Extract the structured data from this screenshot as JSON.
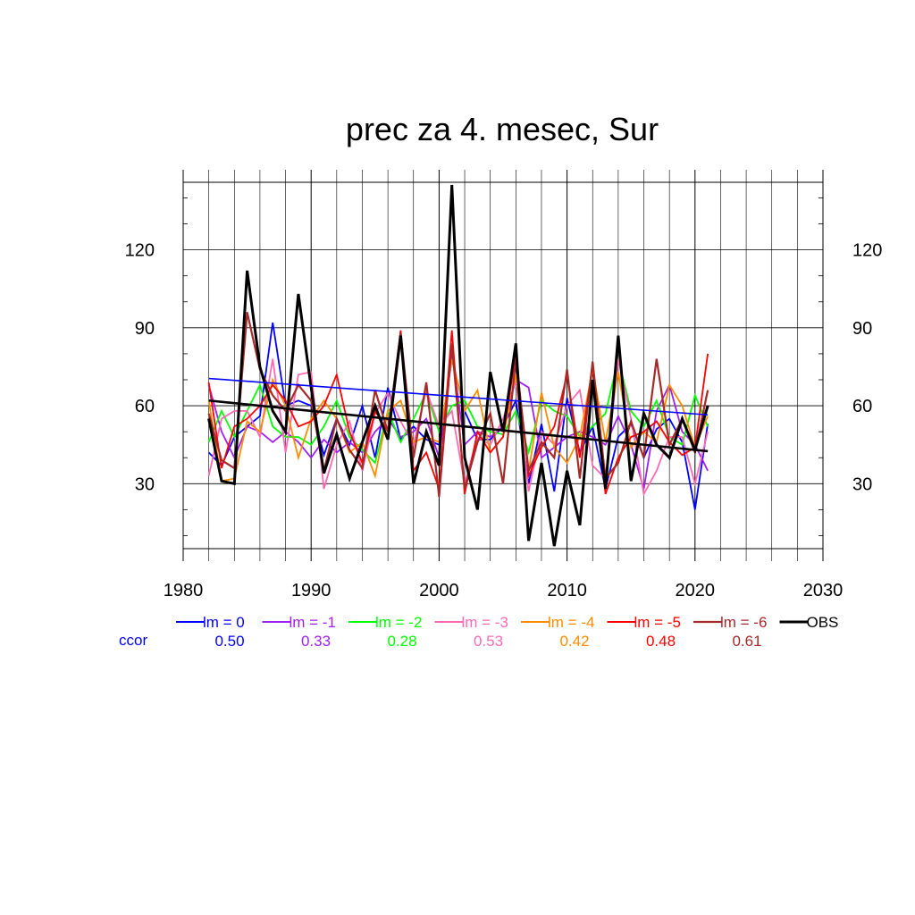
{
  "chart_data": {
    "type": "line",
    "title": "prec za 4. mesec, Sur",
    "xlabel": "",
    "ylabel": "",
    "xlim": [
      1980,
      2030
    ],
    "ylim": [
      5,
      146
    ],
    "xticks": [
      1980,
      1990,
      2000,
      2010,
      2020,
      2030
    ],
    "yticks": [
      30,
      60,
      90,
      120
    ],
    "grid": true,
    "legend_position": "bottom",
    "ccor_label": "ccor",
    "x": [
      1982,
      1983,
      1984,
      1985,
      1986,
      1987,
      1988,
      1989,
      1990,
      1991,
      1992,
      1993,
      1994,
      1995,
      1996,
      1997,
      1998,
      1999,
      2000,
      2001,
      2002,
      2003,
      2004,
      2005,
      2006,
      2007,
      2008,
      2009,
      2010,
      2011,
      2012,
      2013,
      2014,
      2015,
      2016,
      2017,
      2018,
      2019,
      2020,
      2021
    ],
    "series": [
      {
        "name": "lm = 0",
        "color": "#0000ff",
        "ccor": "0.50",
        "width": 1.8,
        "values": [
          42,
          37,
          48,
          52,
          56,
          92,
          60,
          62,
          60,
          41,
          55,
          45,
          60,
          40,
          67,
          47,
          52,
          47,
          45,
          78,
          58,
          47,
          47,
          52,
          62,
          30,
          53,
          27,
          63,
          42,
          52,
          28,
          48,
          53,
          40,
          51,
          55,
          46,
          20,
          53
        ],
        "trend": [
          70.5,
          56.5
        ]
      },
      {
        "name": "lm = -1",
        "color": "#a020f0",
        "ccor": "0.33",
        "width": 1.8,
        "values": [
          68,
          50,
          40,
          52,
          50,
          46,
          50,
          46,
          40,
          47,
          42,
          46,
          42,
          50,
          55,
          48,
          50,
          55,
          40,
          80,
          45,
          50,
          48,
          52,
          70,
          67,
          40,
          44,
          48,
          50,
          48,
          45,
          56,
          45,
          28,
          58,
          68,
          50,
          45,
          35
        ]
      },
      {
        "name": "lm = -2",
        "color": "#00ff00",
        "ccor": "0.28",
        "width": 1.8,
        "values": [
          46,
          58,
          48,
          58,
          68,
          52,
          48,
          48,
          45,
          52,
          62,
          48,
          43,
          38,
          58,
          46,
          55,
          65,
          50,
          60,
          62,
          52,
          50,
          49,
          58,
          42,
          62,
          58,
          56,
          48,
          52,
          57,
          78,
          58,
          52,
          62,
          48,
          45,
          64,
          52
        ]
      },
      {
        "name": "lm = -3",
        "color": "#ff69b4",
        "ccor": "0.53",
        "width": 1.8,
        "values": [
          33,
          55,
          58,
          58,
          48,
          78,
          42,
          72,
          73,
          28,
          45,
          54,
          35,
          57,
          65,
          54,
          45,
          66,
          52,
          58,
          30,
          48,
          45,
          55,
          70,
          27,
          50,
          45,
          60,
          66,
          37,
          32,
          78,
          55,
          26,
          35,
          48,
          48,
          30,
          50
        ]
      },
      {
        "name": "lm = -4",
        "color": "#ff8c00",
        "ccor": "0.42",
        "width": 1.8,
        "values": [
          62,
          31,
          32,
          54,
          50,
          70,
          60,
          40,
          55,
          62,
          55,
          42,
          46,
          33,
          58,
          62,
          46,
          48,
          46,
          78,
          58,
          66,
          42,
          48,
          72,
          35,
          65,
          44,
          38,
          48,
          74,
          46,
          73,
          44,
          50,
          46,
          68,
          60,
          44,
          56
        ]
      },
      {
        "name": "lm = -5",
        "color": "#ff0000",
        "ccor": "0.48",
        "width": 1.8,
        "values": [
          69,
          36,
          52,
          55,
          60,
          68,
          62,
          52,
          54,
          60,
          72,
          50,
          38,
          58,
          50,
          89,
          35,
          42,
          28,
          89,
          26,
          50,
          42,
          48,
          80,
          33,
          44,
          52,
          72,
          40,
          76,
          26,
          40,
          48,
          50,
          54,
          46,
          41,
          44,
          80
        ]
      },
      {
        "name": "lm = -6",
        "color": "#a52a2a",
        "ccor": "0.61",
        "width": 2.2,
        "values": [
          57,
          39,
          36,
          96,
          74,
          64,
          58,
          68,
          62,
          35,
          55,
          43,
          36,
          66,
          50,
          88,
          40,
          69,
          25,
          84,
          28,
          46,
          57,
          30,
          78,
          35,
          46,
          40,
          74,
          32,
          77,
          32,
          38,
          54,
          40,
          78,
          45,
          55,
          42,
          66
        ]
      },
      {
        "name": "OBS",
        "color": "#000000",
        "ccor": "",
        "width": 3,
        "values": [
          55,
          31,
          30,
          112,
          75,
          58,
          50,
          103,
          67,
          34,
          49,
          32,
          46,
          60,
          47,
          87,
          30,
          50,
          37,
          145,
          40,
          20,
          73,
          50,
          84,
          8,
          38,
          6,
          35,
          14,
          70,
          28,
          87,
          31,
          57,
          45,
          40,
          55,
          43,
          60
        ],
        "trend": [
          62,
          42.5
        ]
      }
    ]
  }
}
